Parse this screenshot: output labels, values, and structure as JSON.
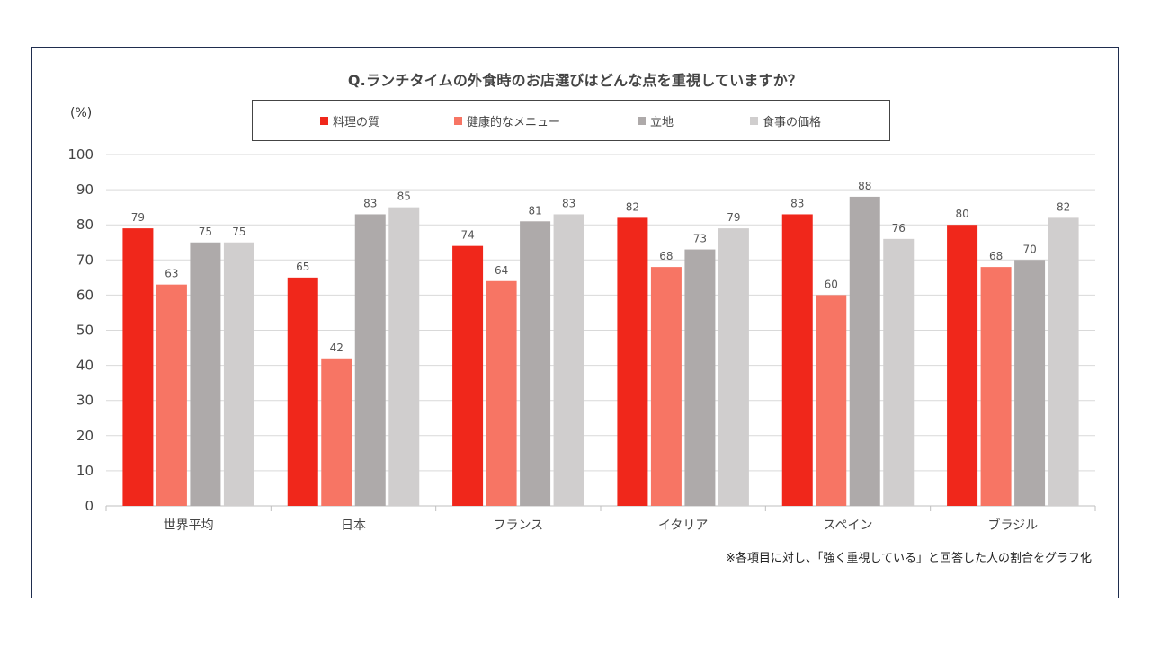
{
  "chart_data": {
    "type": "bar",
    "title": "Q.ランチタイムの外食時のお店選びはどんな点を重視していますか？",
    "ylabel": "(%)",
    "xlabel": "",
    "ylim": [
      0,
      100
    ],
    "yticks": [
      0,
      10,
      20,
      30,
      40,
      50,
      60,
      70,
      80,
      90,
      100
    ],
    "grid": true,
    "legend_position": "top-center",
    "categories": [
      "世界平均",
      "日本",
      "フランス",
      "イタリア",
      "スペイン",
      "ブラジル"
    ],
    "series": [
      {
        "name": "料理の質",
        "color": "#f0271b",
        "values": [
          79,
          65,
          74,
          82,
          83,
          80
        ]
      },
      {
        "name": "健康的なメニュー",
        "color": "#f77564",
        "values": [
          63,
          42,
          64,
          68,
          60,
          68
        ]
      },
      {
        "name": "立地",
        "color": "#aeaaaa",
        "values": [
          75,
          83,
          81,
          73,
          88,
          70
        ]
      },
      {
        "name": "食事の価格",
        "color": "#d0cece",
        "values": [
          75,
          85,
          83,
          79,
          76,
          82
        ]
      }
    ],
    "footnote": "※各項目に対し、「強く重視している」と回答した人の割合をグラフ化"
  }
}
